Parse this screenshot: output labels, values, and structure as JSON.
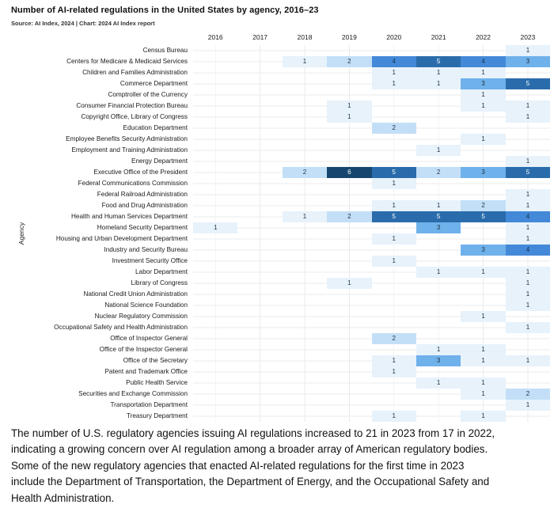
{
  "header": {
    "title": "Number of AI-related regulations in the United States by agency, 2016–23",
    "source": "Source: AI Index, 2024 | Chart: 2024 AI Index report"
  },
  "chart_data": {
    "type": "heatmap",
    "title": "Number of AI-related regulations in the United States by agency, 2016–23",
    "xlabel": "",
    "ylabel": "Agency",
    "x": [
      "2016",
      "2017",
      "2018",
      "2019",
      "2020",
      "2021",
      "2022",
      "2023"
    ],
    "legend_position": "none",
    "grid": true,
    "value_colors": {
      "1": "#e7f2fb",
      "2": "#c3dff7",
      "3": "#6fb1ea",
      "4": "#4389d8",
      "5": "#2a6cab",
      "6": "#16466f"
    },
    "rows": [
      {
        "agency": "Census Bureau",
        "values": [
          0,
          0,
          0,
          0,
          0,
          0,
          0,
          1
        ]
      },
      {
        "agency": "Centers for Medicare & Medicaid Services",
        "values": [
          0,
          0,
          1,
          2,
          4,
          5,
          4,
          3
        ]
      },
      {
        "agency": "Children and Families Administration",
        "values": [
          0,
          0,
          0,
          0,
          1,
          1,
          1,
          0
        ]
      },
      {
        "agency": "Commerce Department",
        "values": [
          0,
          0,
          0,
          0,
          1,
          1,
          3,
          5
        ]
      },
      {
        "agency": "Comptroller of the Currency",
        "values": [
          0,
          0,
          0,
          0,
          0,
          0,
          1,
          0
        ]
      },
      {
        "agency": "Consumer Financial Protection Bureau",
        "values": [
          0,
          0,
          0,
          1,
          0,
          0,
          1,
          1
        ]
      },
      {
        "agency": "Copyright Office, Library of Congress",
        "values": [
          0,
          0,
          0,
          1,
          0,
          0,
          0,
          1
        ]
      },
      {
        "agency": "Education Department",
        "values": [
          0,
          0,
          0,
          0,
          2,
          0,
          0,
          0
        ]
      },
      {
        "agency": "Employee Benefits Security Administration",
        "values": [
          0,
          0,
          0,
          0,
          0,
          0,
          1,
          0
        ]
      },
      {
        "agency": "Employment and Training Administration",
        "values": [
          0,
          0,
          0,
          0,
          0,
          1,
          0,
          0
        ]
      },
      {
        "agency": "Energy Department",
        "values": [
          0,
          0,
          0,
          0,
          0,
          0,
          0,
          1
        ]
      },
      {
        "agency": "Executive Office of the President",
        "values": [
          0,
          0,
          2,
          6,
          5,
          2,
          3,
          5
        ]
      },
      {
        "agency": "Federal Communications Commission",
        "values": [
          0,
          0,
          0,
          0,
          1,
          0,
          0,
          0
        ]
      },
      {
        "agency": "Federal Railroad Administration",
        "values": [
          0,
          0,
          0,
          0,
          0,
          0,
          0,
          1
        ]
      },
      {
        "agency": "Food and Drug Administration",
        "values": [
          0,
          0,
          0,
          0,
          1,
          1,
          2,
          1
        ]
      },
      {
        "agency": "Health and Human Services Department",
        "values": [
          0,
          0,
          1,
          2,
          5,
          5,
          5,
          4
        ]
      },
      {
        "agency": "Homeland Security Department",
        "values": [
          1,
          0,
          0,
          0,
          0,
          3,
          0,
          1
        ]
      },
      {
        "agency": "Housing and Urban Development Department",
        "values": [
          0,
          0,
          0,
          0,
          1,
          0,
          0,
          1
        ]
      },
      {
        "agency": "Industry and Security Bureau",
        "values": [
          0,
          0,
          0,
          0,
          0,
          0,
          3,
          4
        ]
      },
      {
        "agency": "Investment Security Office",
        "values": [
          0,
          0,
          0,
          0,
          1,
          0,
          0,
          0
        ]
      },
      {
        "agency": "Labor Department",
        "values": [
          0,
          0,
          0,
          0,
          0,
          1,
          1,
          1
        ]
      },
      {
        "agency": "Library of Congress",
        "values": [
          0,
          0,
          0,
          1,
          0,
          0,
          0,
          1
        ]
      },
      {
        "agency": "National Credit Union Administration",
        "values": [
          0,
          0,
          0,
          0,
          0,
          0,
          0,
          1
        ]
      },
      {
        "agency": "National Science Foundation",
        "values": [
          0,
          0,
          0,
          0,
          0,
          0,
          0,
          1
        ]
      },
      {
        "agency": "Nuclear Regulatory Commission",
        "values": [
          0,
          0,
          0,
          0,
          0,
          0,
          1,
          0
        ]
      },
      {
        "agency": "Occupational Safety and Health Administration",
        "values": [
          0,
          0,
          0,
          0,
          0,
          0,
          0,
          1
        ]
      },
      {
        "agency": "Office of Inspector General",
        "values": [
          0,
          0,
          0,
          0,
          2,
          0,
          0,
          0
        ]
      },
      {
        "agency": "Office of the Inspector General",
        "values": [
          0,
          0,
          0,
          0,
          0,
          1,
          1,
          0
        ]
      },
      {
        "agency": "Office of the Secretary",
        "values": [
          0,
          0,
          0,
          0,
          1,
          3,
          1,
          1
        ]
      },
      {
        "agency": "Patent and Trademark Office",
        "values": [
          0,
          0,
          0,
          0,
          1,
          0,
          0,
          0
        ]
      },
      {
        "agency": "Public Health Service",
        "values": [
          0,
          0,
          0,
          0,
          0,
          1,
          1,
          0
        ]
      },
      {
        "agency": "Securities and Exchange Commission",
        "values": [
          0,
          0,
          0,
          0,
          0,
          0,
          1,
          2
        ]
      },
      {
        "agency": "Transportation Department",
        "values": [
          0,
          0,
          0,
          0,
          0,
          0,
          0,
          1
        ]
      },
      {
        "agency": "Treasury Department",
        "values": [
          0,
          0,
          0,
          0,
          1,
          0,
          1,
          0
        ]
      }
    ]
  },
  "caption": "The number of U.S. regulatory agencies issuing AI regulations increased to 21 in 2023 from 17 in 2022,\nindicating a growing concern over AI regulation among a broader array of American regulatory bodies.\nSome of the new regulatory agencies that enacted AI-related regulations for the first time in 2023\ninclude the Department of Transportation, the Department of Energy, and the Occupational Safety and\nHealth Administration."
}
